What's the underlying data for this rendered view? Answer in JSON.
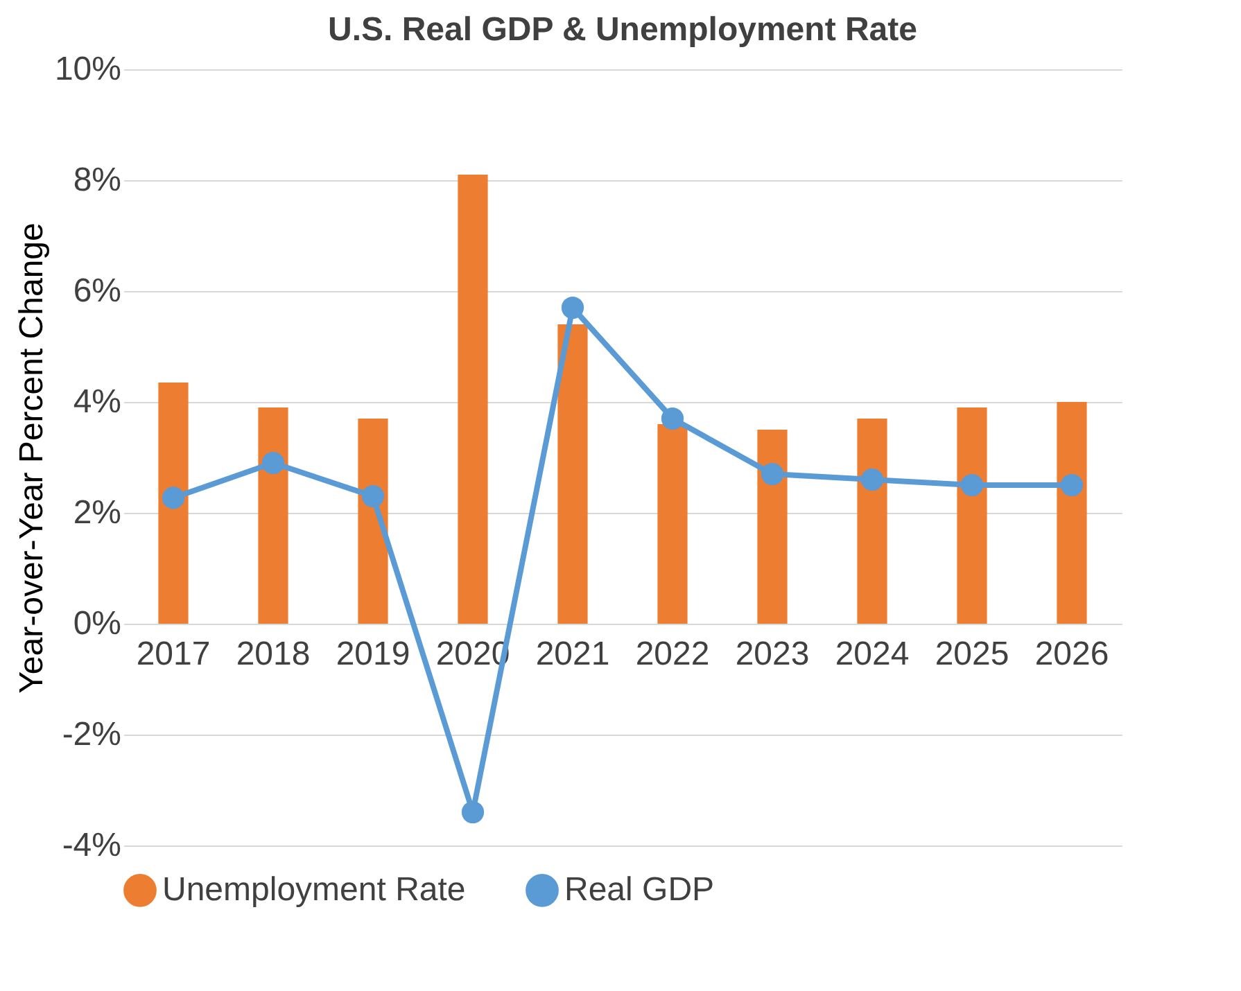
{
  "chart_data": {
    "type": "bar",
    "title": "U.S. Real GDP & Unemployment Rate",
    "ylabel": "Year-over-Year Percent Change",
    "categories": [
      "2017",
      "2018",
      "2019",
      "2020",
      "2021",
      "2022",
      "2023",
      "2024",
      "2025",
      "2026"
    ],
    "series": [
      {
        "name": "Unemployment Rate",
        "color": "#ed7d31",
        "values": [
          4.35,
          3.9,
          3.7,
          8.1,
          5.4,
          3.6,
          3.5,
          3.7,
          3.9,
          4.0
        ]
      },
      {
        "name": "Real GDP",
        "type": "line",
        "color": "#5b9bd5",
        "values": [
          2.27,
          2.9,
          2.3,
          -3.4,
          5.7,
          3.7,
          2.7,
          2.6,
          2.5,
          2.5
        ]
      }
    ],
    "ylim": [
      -4,
      10
    ],
    "yticks": [
      {
        "value": -4,
        "label": "-4%"
      },
      {
        "value": -2,
        "label": "-2%"
      },
      {
        "value": 0,
        "label": "0%"
      },
      {
        "value": 2,
        "label": "2%"
      },
      {
        "value": 4,
        "label": "4%"
      },
      {
        "value": 6,
        "label": "6%"
      },
      {
        "value": 8,
        "label": "8%"
      },
      {
        "value": 10,
        "label": "10%"
      }
    ],
    "grid": "y",
    "legend": "bottom",
    "marker": "circle",
    "line_style": "solid"
  }
}
